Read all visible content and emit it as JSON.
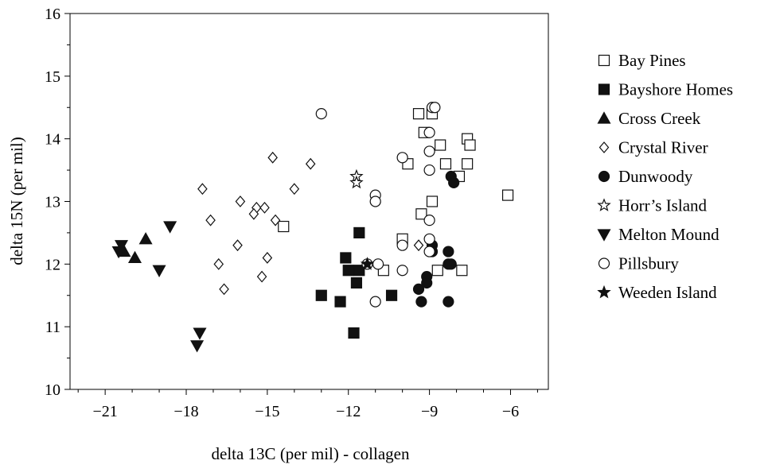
{
  "chart_data": {
    "type": "scatter",
    "title": "",
    "xlabel": "delta 13C (per mil) - collagen",
    "ylabel": "delta 15N (per mil)",
    "xlim": [
      -22.3,
      -4.6
    ],
    "ylim": [
      10,
      16
    ],
    "xticks": [
      -21,
      -18,
      -15,
      -12,
      -9,
      -6
    ],
    "xtick_labels": [
      "−21",
      "−18",
      "−15",
      "−12",
      "−9",
      "−6"
    ],
    "yticks": [
      10,
      11,
      12,
      13,
      14,
      15,
      16
    ],
    "ytick_labels": [
      "10",
      "11",
      "12",
      "13",
      "14",
      "15",
      "16"
    ],
    "grid": false,
    "legend_position": "right",
    "series": [
      {
        "name": "Bay Pines",
        "marker": "square-open",
        "points": [
          [
            -9.4,
            14.4
          ],
          [
            -9.2,
            14.1
          ],
          [
            -8.9,
            14.4
          ],
          [
            -8.6,
            13.9
          ],
          [
            -7.6,
            14.0
          ],
          [
            -7.5,
            13.9
          ],
          [
            -8.4,
            13.6
          ],
          [
            -7.6,
            13.6
          ],
          [
            -7.9,
            13.4
          ],
          [
            -9.8,
            13.6
          ],
          [
            -8.9,
            13.0
          ],
          [
            -9.3,
            12.8
          ],
          [
            -6.1,
            13.1
          ],
          [
            -10.0,
            12.4
          ],
          [
            -8.7,
            11.9
          ],
          [
            -7.8,
            11.9
          ],
          [
            -10.7,
            11.9
          ],
          [
            -14.4,
            12.6
          ]
        ]
      },
      {
        "name": "Bayshore Homes",
        "marker": "square-filled",
        "points": [
          [
            -11.6,
            12.5
          ],
          [
            -12.1,
            12.1
          ],
          [
            -12.0,
            11.9
          ],
          [
            -11.6,
            11.9
          ],
          [
            -11.7,
            11.7
          ],
          [
            -13.0,
            11.5
          ],
          [
            -10.4,
            11.5
          ],
          [
            -12.3,
            11.4
          ],
          [
            -11.8,
            10.9
          ]
        ]
      },
      {
        "name": "Cross Creek",
        "marker": "triangle-up-filled",
        "points": [
          [
            -19.5,
            12.4
          ],
          [
            -20.3,
            12.2
          ],
          [
            -19.9,
            12.1
          ]
        ]
      },
      {
        "name": "Crystal River",
        "marker": "diamond-open",
        "points": [
          [
            -14.8,
            13.7
          ],
          [
            -13.4,
            13.6
          ],
          [
            -17.4,
            13.2
          ],
          [
            -14.0,
            13.2
          ],
          [
            -16.0,
            13.0
          ],
          [
            -15.4,
            12.9
          ],
          [
            -15.1,
            12.9
          ],
          [
            -15.5,
            12.8
          ],
          [
            -17.1,
            12.7
          ],
          [
            -14.7,
            12.7
          ],
          [
            -16.1,
            12.3
          ],
          [
            -15.0,
            12.1
          ],
          [
            -9.4,
            12.3
          ],
          [
            -16.8,
            12.0
          ],
          [
            -15.2,
            11.8
          ],
          [
            -16.6,
            11.6
          ]
        ]
      },
      {
        "name": "Dunwoody",
        "marker": "circle-filled",
        "points": [
          [
            -8.2,
            13.4
          ],
          [
            -8.1,
            13.3
          ],
          [
            -8.9,
            12.3
          ],
          [
            -8.9,
            12.2
          ],
          [
            -8.3,
            12.2
          ],
          [
            -8.3,
            12.0
          ],
          [
            -8.2,
            12.0
          ],
          [
            -9.1,
            11.8
          ],
          [
            -9.1,
            11.7
          ],
          [
            -9.4,
            11.6
          ],
          [
            -9.3,
            11.4
          ],
          [
            -8.3,
            11.4
          ]
        ]
      },
      {
        "name": "Horr’s Island",
        "marker": "star-open",
        "points": [
          [
            -11.7,
            13.4
          ],
          [
            -11.7,
            13.3
          ]
        ]
      },
      {
        "name": "Melton Mound",
        "marker": "triangle-down-filled",
        "points": [
          [
            -18.6,
            12.6
          ],
          [
            -20.4,
            12.3
          ],
          [
            -20.5,
            12.2
          ],
          [
            -19.0,
            11.9
          ],
          [
            -17.5,
            10.9
          ],
          [
            -17.6,
            10.7
          ]
        ]
      },
      {
        "name": "Pillsbury",
        "marker": "circle-open",
        "points": [
          [
            -13.0,
            14.4
          ],
          [
            -8.9,
            14.5
          ],
          [
            -8.8,
            14.5
          ],
          [
            -9.0,
            14.1
          ],
          [
            -9.0,
            13.8
          ],
          [
            -10.0,
            13.7
          ],
          [
            -11.0,
            13.1
          ],
          [
            -11.0,
            13.0
          ],
          [
            -9.0,
            13.5
          ],
          [
            -9.0,
            12.7
          ],
          [
            -9.0,
            12.4
          ],
          [
            -10.0,
            12.3
          ],
          [
            -9.0,
            12.2
          ],
          [
            -11.3,
            12.0
          ],
          [
            -10.9,
            12.0
          ],
          [
            -10.0,
            11.9
          ],
          [
            -11.0,
            11.4
          ]
        ]
      },
      {
        "name": "Weeden Island",
        "marker": "star-filled",
        "points": [
          [
            -11.3,
            12.0
          ]
        ]
      }
    ]
  }
}
